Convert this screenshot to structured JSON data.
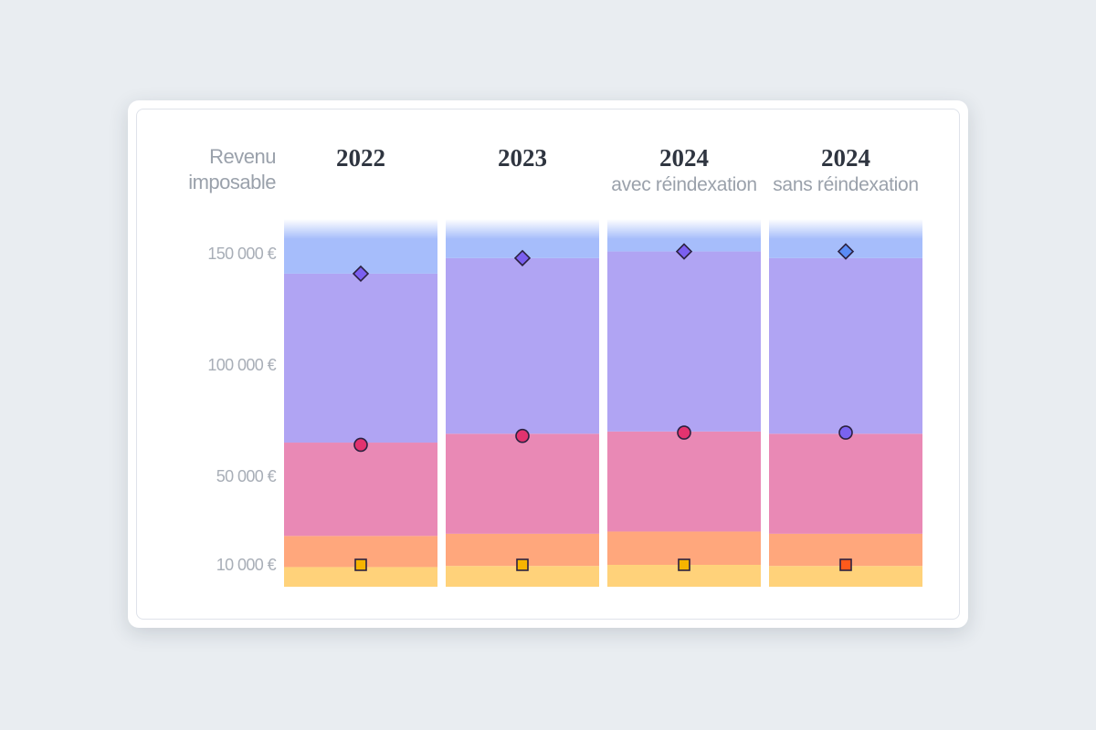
{
  "chart_data": {
    "type": "stacked-bracket-columns",
    "y_axis_title": "Revenu imposable",
    "y_ticks": [
      {
        "value": 150000,
        "label": "150 000 €"
      },
      {
        "value": 100000,
        "label": "100 000 €"
      },
      {
        "value": 50000,
        "label": "50 000 €"
      },
      {
        "value": 10000,
        "label": "10 000 €"
      }
    ],
    "ylim": [
      0,
      166000
    ],
    "colors": {
      "band_1": "#ffd27a",
      "band_2": "#ffa77c",
      "band_3": "#e989b5",
      "band_4": "#b0a4f3",
      "band_5": "#a6bdfb",
      "marker_square_yellow": "#f6b400",
      "marker_square_orange": "#ff5a1c",
      "marker_circle_pink": "#e2336f",
      "marker_circle_purple": "#7a63f0",
      "marker_diamond_purple": "#7b5ff0",
      "marker_diamond_blue": "#5b8cf5"
    },
    "columns": [
      {
        "year": "2022",
        "subtitle": "",
        "band_boundaries": [
          0,
          9000,
          23000,
          65000,
          141000,
          166000
        ],
        "markers": [
          {
            "shape": "square",
            "value": 10000,
            "color": "marker_square_yellow"
          },
          {
            "shape": "circle",
            "value": 64000,
            "color": "marker_circle_pink"
          },
          {
            "shape": "diamond",
            "value": 141000,
            "color": "marker_diamond_purple"
          }
        ]
      },
      {
        "year": "2023",
        "subtitle": "",
        "band_boundaries": [
          0,
          9500,
          24000,
          69000,
          148000,
          166000
        ],
        "markers": [
          {
            "shape": "square",
            "value": 10000,
            "color": "marker_square_yellow"
          },
          {
            "shape": "circle",
            "value": 68000,
            "color": "marker_circle_pink"
          },
          {
            "shape": "diamond",
            "value": 148000,
            "color": "marker_diamond_purple"
          }
        ]
      },
      {
        "year": "2024",
        "subtitle": "avec réindexation",
        "band_boundaries": [
          0,
          10000,
          25000,
          70000,
          151000,
          166000
        ],
        "markers": [
          {
            "shape": "square",
            "value": 10000,
            "color": "marker_square_yellow"
          },
          {
            "shape": "circle",
            "value": 69500,
            "color": "marker_circle_pink"
          },
          {
            "shape": "diamond",
            "value": 151000,
            "color": "marker_diamond_purple"
          }
        ]
      },
      {
        "year": "2024",
        "subtitle": "sans réindexation",
        "band_boundaries": [
          0,
          9500,
          24000,
          69000,
          148000,
          166000
        ],
        "markers": [
          {
            "shape": "square",
            "value": 10000,
            "color": "marker_square_orange"
          },
          {
            "shape": "circle",
            "value": 69500,
            "color": "marker_circle_purple"
          },
          {
            "shape": "diamond",
            "value": 151000,
            "color": "marker_diamond_blue"
          }
        ]
      }
    ]
  }
}
